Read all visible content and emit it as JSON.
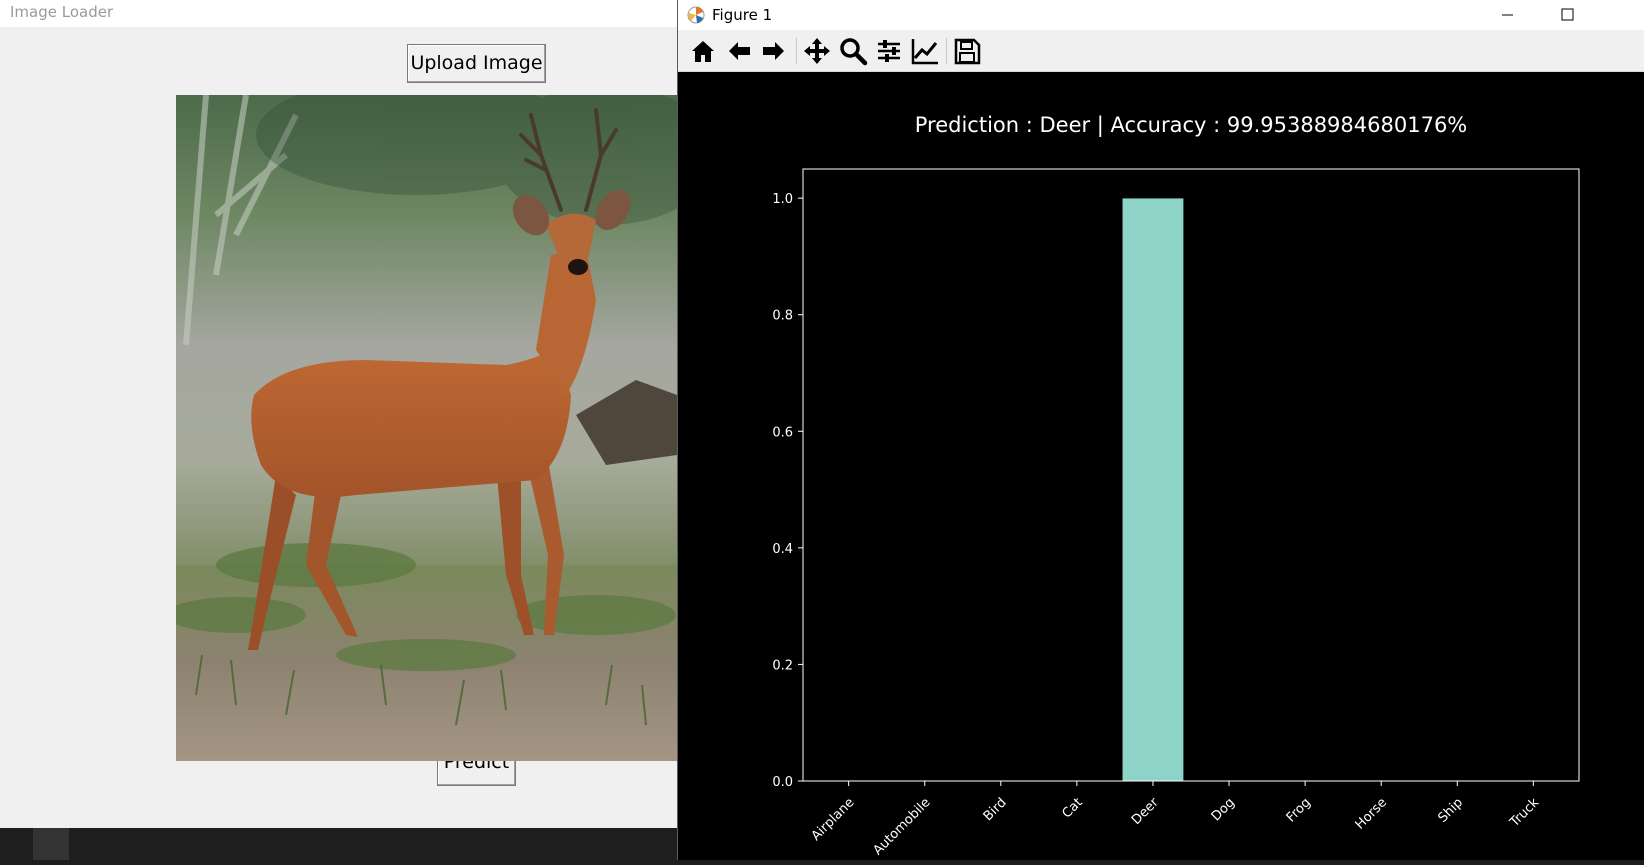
{
  "loader": {
    "title": "Image Loader",
    "upload_label": "Upload Image",
    "predict_label": "Predict"
  },
  "figure": {
    "title": "Figure 1",
    "toolbar_icons": [
      "home-icon",
      "back-arrow-icon",
      "forward-arrow-icon",
      "pan-icon",
      "zoom-icon",
      "subplots-icon",
      "edit-curves-icon",
      "save-icon"
    ]
  },
  "colors": {
    "bar": "#8dd3c7",
    "figure_bg": "#000000",
    "axes_edge": "#ffffff"
  },
  "chart_data": {
    "type": "bar",
    "title": "Prediction : Deer | Accuracy : 99.95388984680176%",
    "categories": [
      "Airplane",
      "Automobile",
      "Bird",
      "Cat",
      "Deer",
      "Dog",
      "Frog",
      "Horse",
      "Ship",
      "Truck"
    ],
    "values": [
      0.0,
      0.0,
      0.0,
      0.0,
      0.9995388984680176,
      0.0,
      0.0,
      0.0,
      0.0,
      0.0
    ],
    "yticks": [
      "0.0",
      "0.2",
      "0.4",
      "0.6",
      "0.8",
      "1.0"
    ],
    "ylim": [
      0,
      1.05
    ],
    "grid": false,
    "xlabel": "",
    "ylabel": ""
  }
}
